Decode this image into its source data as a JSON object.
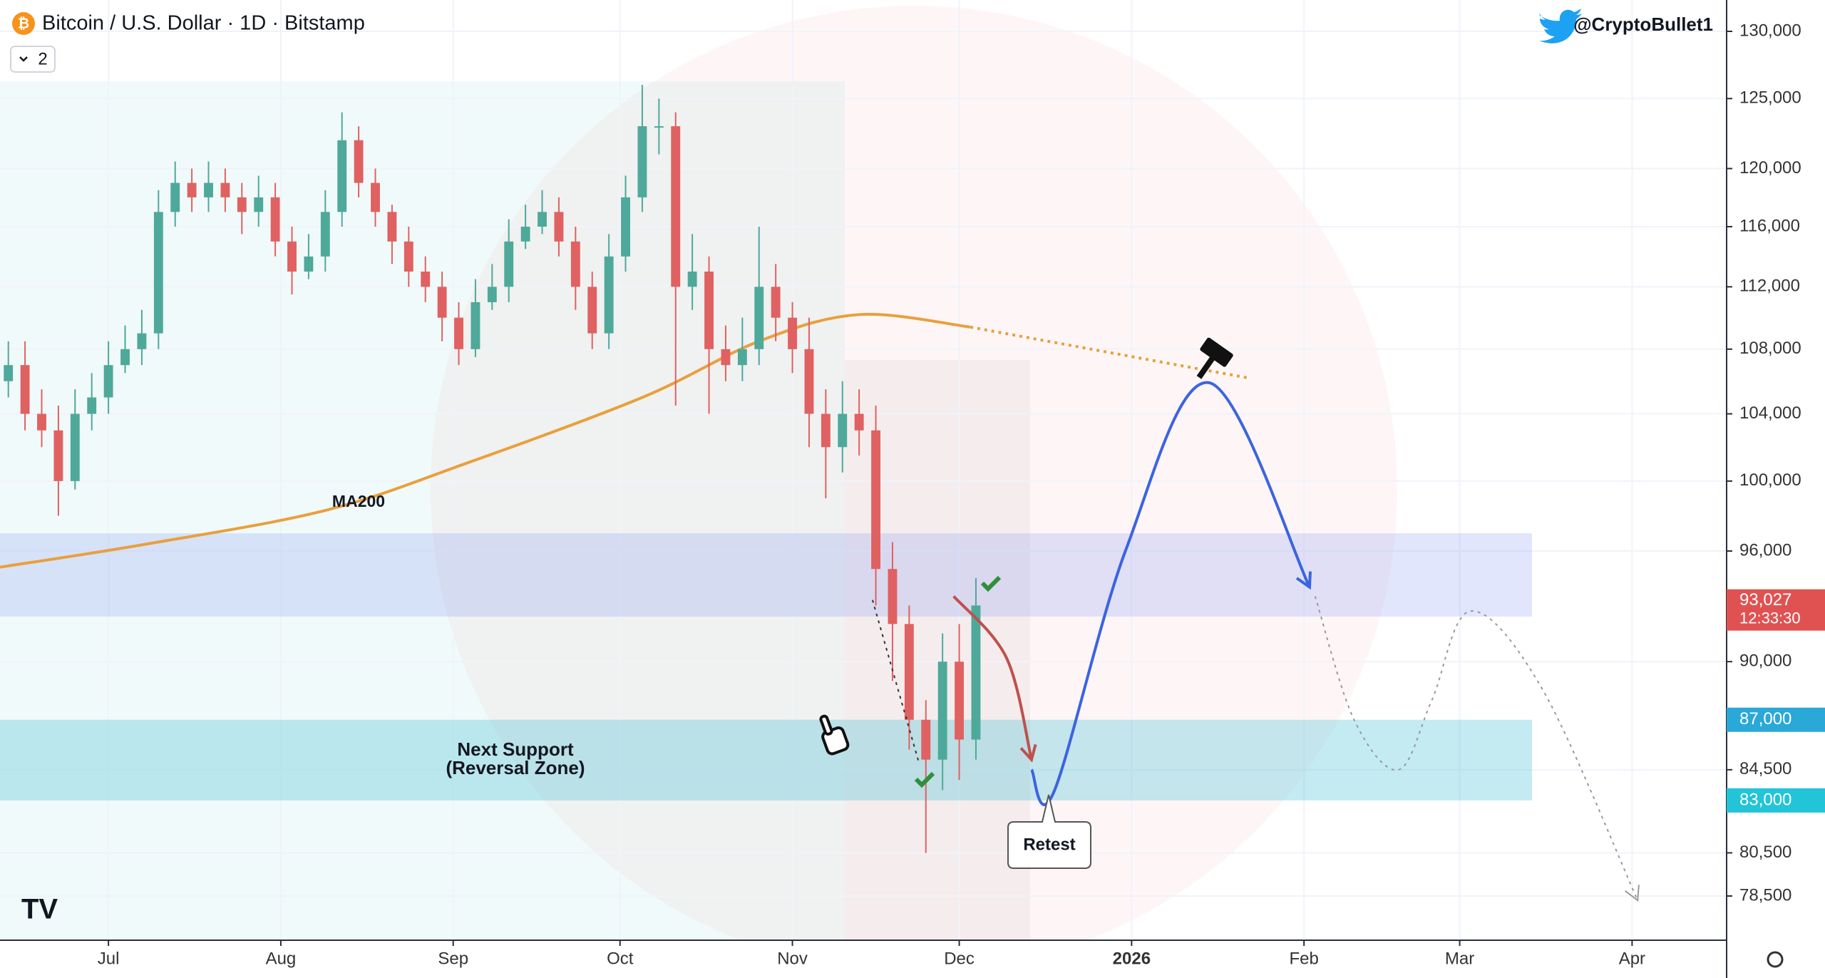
{
  "header": {
    "title": "Bitcoin / U.S. Dollar · 1D · Bitstamp",
    "indicator_count": "2",
    "author": "@CryptoBullet1"
  },
  "chart_data": {
    "type": "candlestick",
    "log_scale": true,
    "grid": true,
    "up_color": "#4ea99a",
    "down_color": "#e06161",
    "xlim": [
      -19.5,
      291
    ],
    "ylim": [
      76500,
      132400
    ],
    "xticks": [
      {
        "value": 0,
        "label": "Jul"
      },
      {
        "value": 31,
        "label": "Aug"
      },
      {
        "value": 62,
        "label": "Sep"
      },
      {
        "value": 92,
        "label": "Oct"
      },
      {
        "value": 123,
        "label": "Nov"
      },
      {
        "value": 153,
        "label": "Dec"
      },
      {
        "value": 184,
        "label": "2026"
      },
      {
        "value": 215,
        "label": "Feb"
      },
      {
        "value": 243,
        "label": "Mar"
      },
      {
        "value": 274,
        "label": "Apr"
      }
    ],
    "yticks": [
      {
        "value": 130000,
        "label": "130,000"
      },
      {
        "value": 125000,
        "label": "125,000"
      },
      {
        "value": 120000,
        "label": "120,000"
      },
      {
        "value": 116000,
        "label": "116,000"
      },
      {
        "value": 112000,
        "label": "112,000"
      },
      {
        "value": 108000,
        "label": "108,000"
      },
      {
        "value": 104000,
        "label": "104,000"
      },
      {
        "value": 100000,
        "label": "100,000"
      },
      {
        "value": 96000,
        "label": "96,000"
      },
      {
        "value": 90000,
        "label": "90,000"
      },
      {
        "value": 84500,
        "label": "84,500"
      },
      {
        "value": 80500,
        "label": "80,500"
      },
      {
        "value": 78500,
        "label": "78,500"
      }
    ],
    "x": [
      -18,
      -15,
      -12,
      -9,
      -6,
      -3,
      0,
      3,
      6,
      9,
      12,
      15,
      18,
      21,
      24,
      27,
      30,
      33,
      36,
      39,
      42,
      45,
      48,
      51,
      54,
      57,
      60,
      63,
      66,
      69,
      72,
      75,
      78,
      81,
      84,
      87,
      90,
      93,
      96,
      99,
      102,
      105,
      108,
      111,
      114,
      117,
      120,
      123,
      126,
      129,
      132,
      135,
      138,
      141,
      144,
      147,
      150,
      153,
      156
    ],
    "open": [
      106000,
      107000,
      104000,
      103000,
      100000,
      104000,
      105000,
      107000,
      108000,
      109000,
      117000,
      119000,
      118000,
      119000,
      118000,
      117000,
      118000,
      115000,
      113000,
      114000,
      117000,
      122000,
      119000,
      117000,
      115000,
      113000,
      112000,
      110000,
      108000,
      111000,
      112000,
      115000,
      116000,
      117000,
      115000,
      112000,
      109000,
      114000,
      118000,
      123000,
      123000,
      112000,
      113000,
      108000,
      107000,
      108000,
      112000,
      110000,
      108000,
      104000,
      102000,
      104000,
      103000,
      95000,
      92000,
      87000,
      85000,
      90000,
      86000
    ],
    "high": [
      108500,
      108500,
      105500,
      104500,
      105500,
      106500,
      108500,
      109500,
      110500,
      118500,
      120500,
      120000,
      120500,
      120000,
      119000,
      119500,
      119000,
      116000,
      115500,
      118500,
      124000,
      123000,
      120000,
      117500,
      116000,
      114000,
      113000,
      111000,
      112500,
      113500,
      116500,
      117500,
      118500,
      118000,
      116000,
      113000,
      115500,
      119500,
      126000,
      125000,
      124000,
      115500,
      114000,
      109500,
      110000,
      116000,
      113500,
      111000,
      110000,
      105500,
      106000,
      105500,
      104500,
      96500,
      93000,
      88000,
      91500,
      92000,
      94500
    ],
    "low": [
      105000,
      103000,
      102000,
      98000,
      99500,
      103000,
      104000,
      106500,
      107000,
      108000,
      116000,
      117000,
      117000,
      117000,
      115500,
      116000,
      114000,
      111500,
      112500,
      113000,
      116000,
      118000,
      116000,
      113500,
      112000,
      111000,
      108500,
      107000,
      107500,
      110500,
      111000,
      114500,
      115500,
      114000,
      110500,
      108000,
      108000,
      113000,
      117000,
      121000,
      104500,
      110500,
      104000,
      106000,
      106000,
      107000,
      108500,
      106500,
      102000,
      99000,
      100500,
      101500,
      93000,
      89000,
      85500,
      80500,
      83500,
      84000,
      85000
    ],
    "close": [
      107000,
      104000,
      103000,
      100000,
      104000,
      105000,
      107000,
      108000,
      109000,
      117000,
      119000,
      118000,
      119000,
      118000,
      117000,
      118000,
      115000,
      113000,
      114000,
      117000,
      122000,
      119000,
      117000,
      115000,
      113000,
      112000,
      110000,
      108000,
      111000,
      112000,
      115000,
      116000,
      117000,
      115000,
      112000,
      109000,
      114000,
      118000,
      123000,
      123000,
      112000,
      113000,
      108000,
      107000,
      108000,
      112000,
      110000,
      108000,
      104000,
      102000,
      104000,
      103000,
      95000,
      92000,
      87000,
      85000,
      90000,
      86000,
      93000
    ],
    "ma": {
      "name": "MA200",
      "color": "#e8a03c",
      "x": [
        -19.5,
        7,
        39,
        64,
        96,
        117,
        135,
        155
      ],
      "values": [
        95100,
        96400,
        98300,
        101000,
        105000,
        108500,
        110200,
        109400
      ]
    },
    "ma_extension": {
      "color": "#e8a03c",
      "style": "dotted",
      "x": [
        155,
        205
      ],
      "values": [
        109400,
        106200
      ]
    },
    "zones": [
      {
        "color": "rgba(120,140,240,0.22)",
        "x_end": 256,
        "low": 92400,
        "high": 97000
      },
      {
        "color": "rgba(60,190,210,0.30)",
        "x_end": 256,
        "low": 83000,
        "high": 87000,
        "low_label": "83,000",
        "high_label": "87,000",
        "label": [
          "Next Support",
          "(Reversal Zone)"
        ]
      }
    ],
    "projections": [
      {
        "color": "#3b64e0",
        "style": "solid",
        "x": [
          166,
          170,
          183,
          198,
          216
        ],
        "values": [
          84500,
          83400,
          96100,
          105900,
          94000
        ]
      },
      {
        "color": "#c0504d",
        "style": "solid",
        "x": [
          152,
          161.5,
          166
        ],
        "values": [
          93500,
          90200,
          85000
        ]
      },
      {
        "color": "#999999",
        "style": "dotted",
        "x": [
          217,
          224,
          232,
          238,
          245,
          258,
          275
        ],
        "values": [
          93500,
          87000,
          84500,
          88000,
          92700,
          88500,
          78300
        ]
      },
      {
        "color": "#333333",
        "style": "dotted",
        "x": [
          137.4,
          145.8
        ],
        "values": [
          93300,
          84800
        ]
      }
    ],
    "last_price": {
      "value": 93027,
      "label": "93,027"
    },
    "countdown": "12:33:30",
    "annotation": "Retest"
  }
}
